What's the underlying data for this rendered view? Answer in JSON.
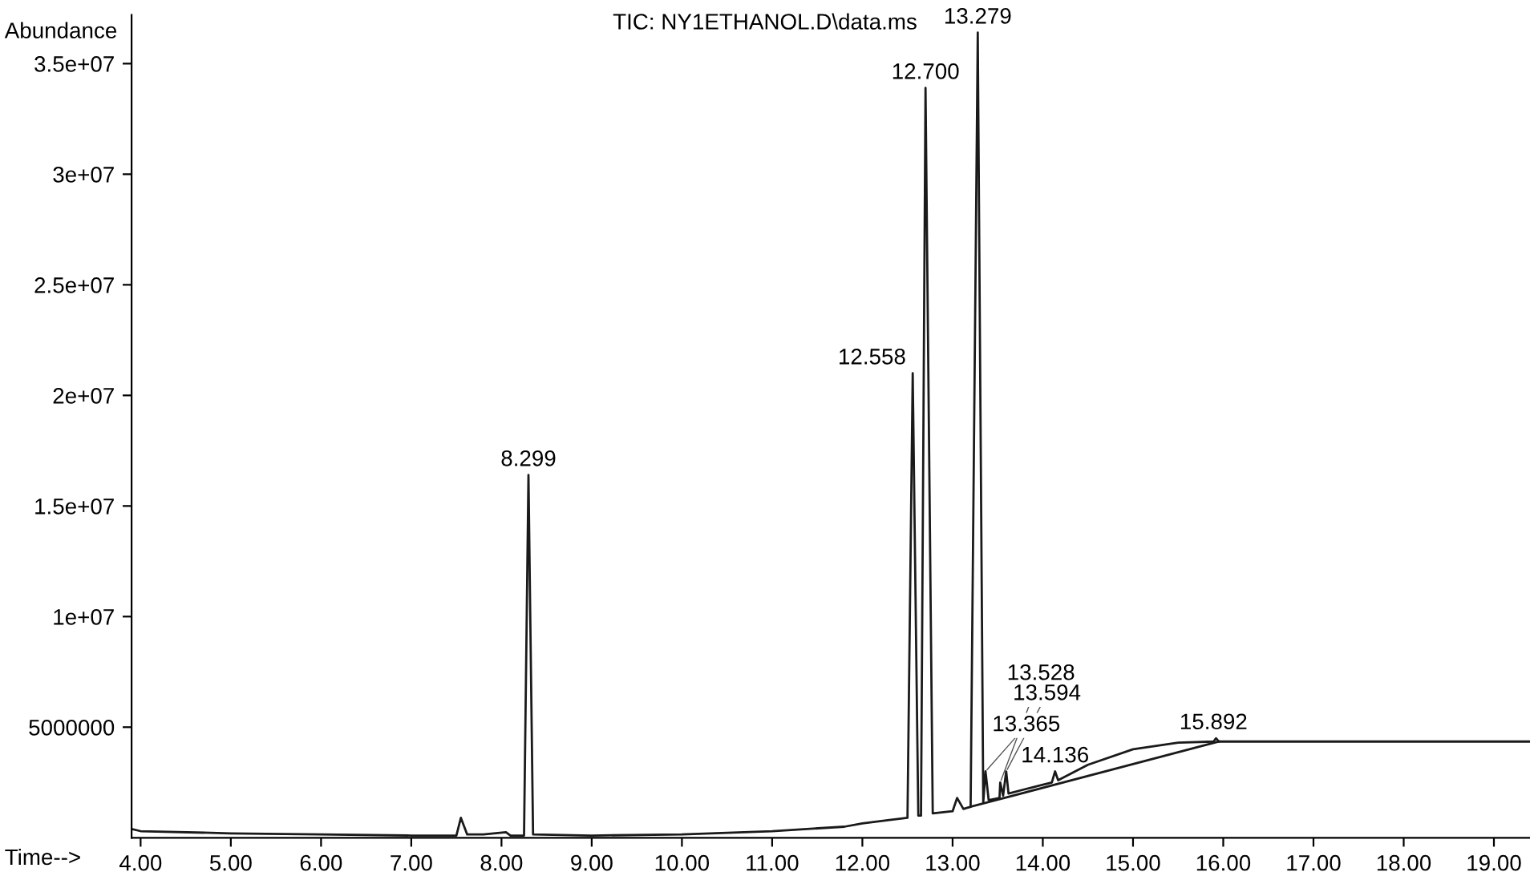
{
  "chart_data": {
    "type": "line",
    "title": "TIC: NY1ETHANOL.D\\data.ms",
    "xlabel": "Time-->",
    "ylabel": "Abundance",
    "xlim": [
      3.9,
      19.4
    ],
    "ylim": [
      0,
      37200000
    ],
    "xticks": [
      {
        "value": 4,
        "label": "4.00"
      },
      {
        "value": 5,
        "label": "5.00"
      },
      {
        "value": 6,
        "label": "6.00"
      },
      {
        "value": 7,
        "label": "7.00"
      },
      {
        "value": 8,
        "label": "8.00"
      },
      {
        "value": 9,
        "label": "9.00"
      },
      {
        "value": 10,
        "label": "10.00"
      },
      {
        "value": 11,
        "label": "11.00"
      },
      {
        "value": 12,
        "label": "12.00"
      },
      {
        "value": 13,
        "label": "13.00"
      },
      {
        "value": 14,
        "label": "14.00"
      },
      {
        "value": 15,
        "label": "15.00"
      },
      {
        "value": 16,
        "label": "16.00"
      },
      {
        "value": 17,
        "label": "17.00"
      },
      {
        "value": 18,
        "label": "18.00"
      },
      {
        "value": 19,
        "label": "19.00"
      }
    ],
    "yticks": [
      5000000,
      {
        "value": 10000000,
        "label": "1e+07"
      },
      {
        "value": 15000000,
        "label": "1.5e+07"
      },
      {
        "value": 20000000,
        "label": "2e+07"
      },
      {
        "value": 25000000,
        "label": "2.5e+07"
      },
      {
        "value": 30000000,
        "label": "3e+07"
      },
      {
        "value": 35000000,
        "label": "3.5e+07"
      }
    ],
    "grid": false,
    "legend": false,
    "marker": "none",
    "line_style": "solid",
    "series": [
      {
        "color": "#1a1a1a",
        "x": [
          3.9,
          4.0,
          5.0,
          6.0,
          7.0,
          7.5,
          7.55,
          7.62,
          7.8,
          8.05,
          8.1,
          8.25,
          8.299,
          8.35,
          9.0,
          10.0,
          11.0,
          11.8,
          12.0,
          12.3,
          12.5,
          12.558,
          12.62,
          12.65,
          12.7,
          12.78,
          13.0,
          13.05,
          13.12,
          13.2,
          13.279,
          13.34,
          13.365,
          13.4,
          13.52,
          13.528,
          13.56,
          13.594,
          13.62,
          14.0,
          14.1,
          14.136,
          14.17,
          14.5,
          15.0,
          15.5,
          15.892,
          15.92,
          15.95,
          16.5,
          19.4
        ],
        "values": [
          400000,
          300000,
          200000,
          150000,
          100000,
          100000,
          900000,
          150000,
          150000,
          250000,
          100000,
          100000,
          16400000,
          150000,
          100000,
          150000,
          300000,
          500000,
          650000,
          800000,
          900000,
          21000000,
          1000000,
          1000000,
          33900000,
          1100000,
          1200000,
          1800000,
          1300000,
          1400000,
          36400000,
          1600000,
          3000000,
          1700000,
          1800000,
          2500000,
          1900000,
          3000000,
          2000000,
          2400000,
          2500000,
          3000000,
          2600000,
          3300000,
          4000000,
          4300000,
          4350000,
          4500000,
          4350000,
          4350000,
          4350000
        ]
      },
      {
        "color": "#1a1a1a",
        "x": [
          13.2,
          15.95
        ],
        "values": [
          1400000,
          4350000
        ]
      }
    ],
    "annotations": [
      {
        "text": "8.299",
        "x": 8.299,
        "y": 16400000
      },
      {
        "text": "12.558",
        "x": 12.558,
        "y": 21000000
      },
      {
        "text": "12.700",
        "x": 12.7,
        "y": 33900000
      },
      {
        "text": "13.279",
        "x": 13.279,
        "y": 36400000
      },
      {
        "text": "13.365",
        "x": 13.365,
        "y": 3000000
      },
      {
        "text": "13.594",
        "x": 13.594,
        "y": 3000000
      },
      {
        "text": "13.528",
        "x": 13.528,
        "y": 2500000
      },
      {
        "text": "14.136",
        "x": 14.136,
        "y": 3000000
      },
      {
        "text": "15.892",
        "x": 15.892,
        "y": 4500000
      }
    ]
  }
}
